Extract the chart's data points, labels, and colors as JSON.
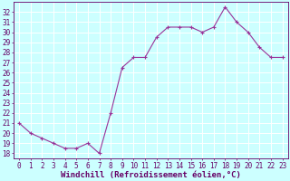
{
  "x": [
    0,
    1,
    2,
    3,
    4,
    5,
    6,
    7,
    8,
    9,
    10,
    11,
    12,
    13,
    14,
    15,
    16,
    17,
    18,
    19,
    20,
    21,
    22,
    23
  ],
  "y": [
    21.0,
    20.0,
    19.5,
    19.0,
    18.5,
    18.5,
    19.0,
    18.0,
    22.0,
    26.5,
    27.5,
    27.5,
    29.5,
    30.5,
    30.5,
    30.5,
    30.0,
    30.5,
    32.5,
    31.0,
    30.0,
    28.5,
    27.5,
    27.5
  ],
  "line_color": "#993399",
  "marker": "+",
  "marker_size": 3,
  "linewidth": 0.8,
  "xlabel": "Windchill (Refroidissement éolien,°C)",
  "ylabel_ticks": [
    18,
    19,
    20,
    21,
    22,
    23,
    24,
    25,
    26,
    27,
    28,
    29,
    30,
    31,
    32
  ],
  "ylim": [
    17.5,
    33.0
  ],
  "xlim": [
    -0.5,
    23.5
  ],
  "xticks": [
    0,
    1,
    2,
    3,
    4,
    5,
    6,
    7,
    8,
    9,
    10,
    11,
    12,
    13,
    14,
    15,
    16,
    17,
    18,
    19,
    20,
    21,
    22,
    23
  ],
  "bg_color": "#ccffff",
  "grid_color": "#aadddd",
  "tick_color": "#660066",
  "tick_fontsize": 5.5,
  "label_fontsize": 6.5
}
